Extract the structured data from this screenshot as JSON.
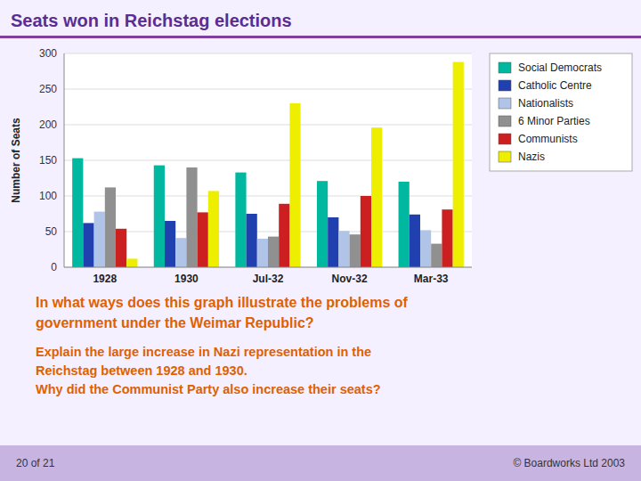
{
  "chart_data": {
    "type": "bar",
    "title": "Seats won in Reichstag elections",
    "ylabel": "Number of Seats",
    "categories": [
      "1928",
      "1930",
      "Jul-32",
      "Nov-32",
      "Mar-33"
    ],
    "series": [
      {
        "name": "Social Democrats",
        "color": "#00B8A0",
        "values": [
          153,
          143,
          133,
          121,
          120
        ]
      },
      {
        "name": "Catholic Centre",
        "color": "#2040B0",
        "values": [
          62,
          65,
          75,
          70,
          74
        ]
      },
      {
        "name": "Nationalists",
        "color": "#B0C4E8",
        "values": [
          78,
          41,
          40,
          51,
          52
        ]
      },
      {
        "name": "6 Minor Parties",
        "color": "#909090",
        "values": [
          112,
          140,
          43,
          46,
          33
        ]
      },
      {
        "name": "Communists",
        "color": "#CC2020",
        "values": [
          54,
          77,
          89,
          100,
          81
        ]
      },
      {
        "name": "Nazis",
        "color": "#EEEE00",
        "values": [
          12,
          107,
          230,
          196,
          288
        ]
      }
    ],
    "ylim": [
      0,
      300
    ],
    "yticks": [
      0,
      50,
      100,
      150,
      200,
      250,
      300
    ],
    "grid": true,
    "legend": "right",
    "annotations": [
      "In what ways does this graph illustrate the problems of",
      "government under the Weimar Republic?",
      "Explain the large increase in Nazi representation in the",
      "Reichstag between 1928 and 1930.",
      "Why did the Communist Party also increase their seats?",
      "20 of 21",
      "© Boardworks Ltd 2003"
    ]
  }
}
